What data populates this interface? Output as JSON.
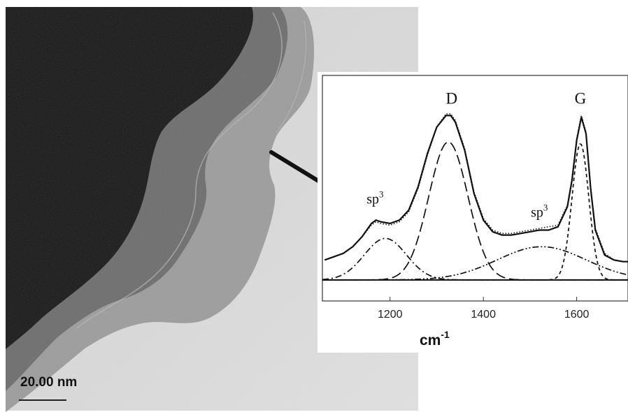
{
  "scale_label": "20.00 nm",
  "chart_data": {
    "type": "line",
    "xlabel_base": "cm",
    "xlabel_exp": "-1",
    "xlim": [
      1055,
      1710
    ],
    "ylim": [
      -0.03,
      1.0
    ],
    "x_ticks": [
      1200,
      1400,
      1600
    ],
    "x_tick_labels": [
      "1200",
      "1400",
      "1600"
    ],
    "x": [
      1060,
      1080,
      1100,
      1120,
      1140,
      1160,
      1170,
      1180,
      1200,
      1220,
      1240,
      1260,
      1280,
      1300,
      1320,
      1330,
      1340,
      1360,
      1380,
      1400,
      1420,
      1440,
      1460,
      1480,
      1500,
      1520,
      1540,
      1560,
      1580,
      1590,
      1600,
      1610,
      1620,
      1630,
      1640,
      1660,
      1680,
      1700,
      1710
    ],
    "series": [
      {
        "style": "solid",
        "values": [
          0.12,
          0.14,
          0.16,
          0.2,
          0.26,
          0.34,
          0.36,
          0.35,
          0.34,
          0.36,
          0.42,
          0.56,
          0.76,
          0.92,
          0.99,
          0.99,
          0.95,
          0.78,
          0.52,
          0.36,
          0.29,
          0.27,
          0.27,
          0.28,
          0.29,
          0.3,
          0.3,
          0.32,
          0.44,
          0.6,
          0.84,
          0.98,
          0.88,
          0.55,
          0.3,
          0.15,
          0.12,
          0.11,
          0.11
        ]
      },
      {
        "style": "dotted",
        "values": [
          0.12,
          0.14,
          0.16,
          0.2,
          0.26,
          0.33,
          0.35,
          0.34,
          0.33,
          0.35,
          0.41,
          0.55,
          0.75,
          0.92,
          1.0,
          1.0,
          0.96,
          0.79,
          0.53,
          0.37,
          0.3,
          0.28,
          0.28,
          0.29,
          0.3,
          0.31,
          0.32,
          0.33,
          0.45,
          0.61,
          0.85,
          0.99,
          0.89,
          0.56,
          0.31,
          0.16,
          0.12,
          0.11,
          0.11
        ]
      },
      {
        "style": "dashdot",
        "center": 1190,
        "amplitude": 0.25,
        "width": 45
      },
      {
        "style": "longdash",
        "center": 1325,
        "amplitude": 0.83,
        "width": 42
      },
      {
        "style": "dashdotdot",
        "center": 1525,
        "amplitude": 0.2,
        "width": 95
      },
      {
        "style": "shortdash",
        "center": 1608,
        "amplitude": 0.82,
        "width": 18
      }
    ],
    "baseline": 0.0,
    "annotations": [
      {
        "text": "D",
        "x": 1332,
        "y": 1.06
      },
      {
        "text": "G",
        "x": 1608,
        "y": 1.06
      },
      {
        "text": "sp",
        "sup": "3",
        "x": 1168,
        "y": 0.46
      },
      {
        "text": "sp",
        "sup": "3",
        "x": 1520,
        "y": 0.38
      }
    ]
  }
}
